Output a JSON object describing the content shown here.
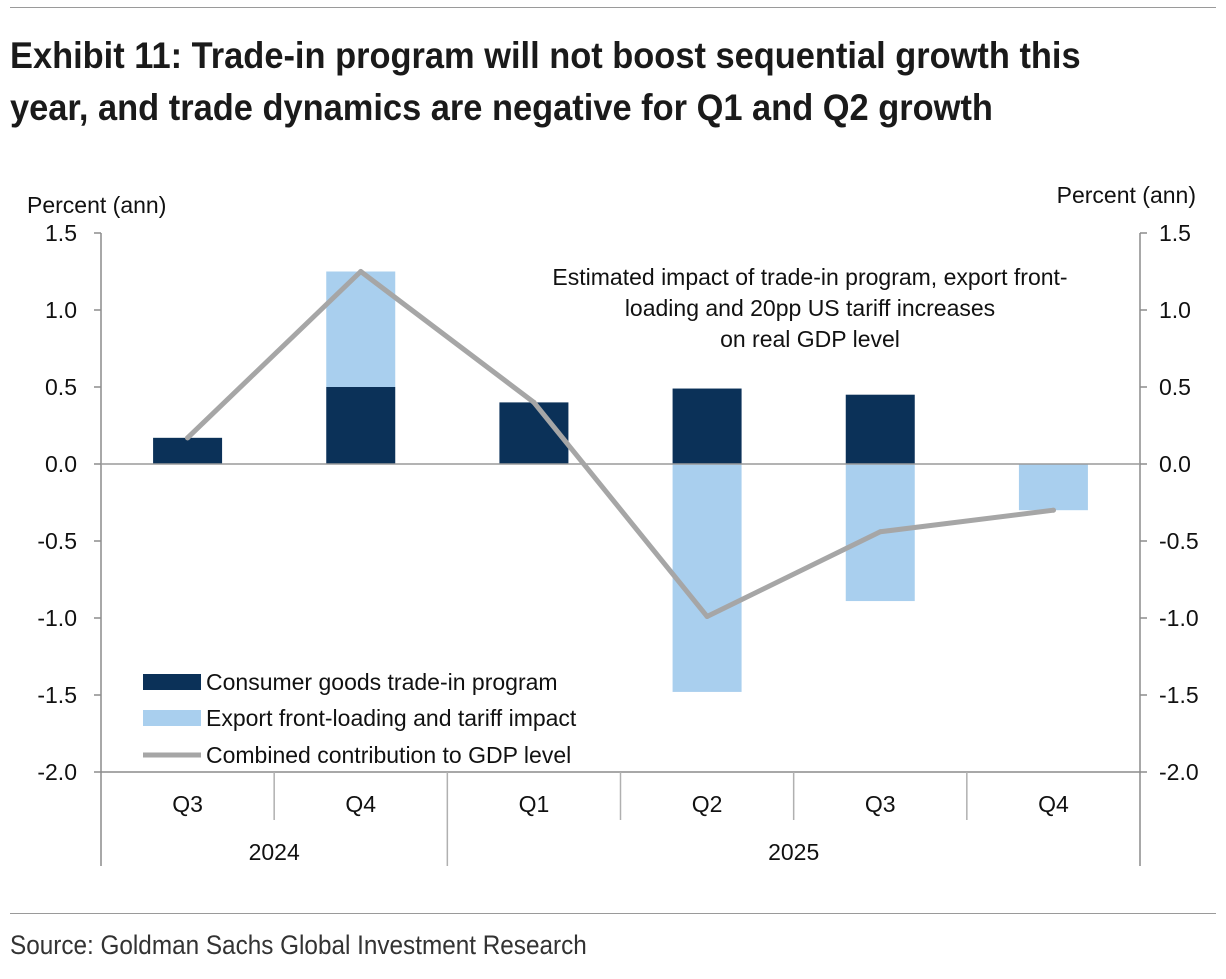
{
  "title_line1": "Exhibit 11: Trade-in program will not boost sequential growth this",
  "title_line2": "year, and trade dynamics are negative for Q1 and Q2 growth",
  "source": "Source: Goldman Sachs Global Investment Research",
  "chart_data": {
    "type": "bar",
    "stacked": true,
    "y_axis_left_label": "Percent (ann)",
    "y_axis_right_label": "Percent (ann)",
    "ylim": [
      -2.0,
      1.5
    ],
    "yticks": [
      "1.5",
      "1.0",
      "0.5",
      "0.0",
      "-0.5",
      "-1.0",
      "-1.5",
      "-2.0"
    ],
    "ytick_values": [
      1.5,
      1.0,
      0.5,
      0.0,
      -0.5,
      -1.0,
      -1.5,
      -2.0
    ],
    "categories": [
      "Q3",
      "Q4",
      "Q1",
      "Q2",
      "Q3",
      "Q4"
    ],
    "year_groups": [
      {
        "label": "2024",
        "count": 2
      },
      {
        "label": "2025",
        "count": 4
      }
    ],
    "annotation": [
      "Estimated impact of trade-in program, export front-",
      "loading and 20pp US tariff increases",
      "on real GDP level"
    ],
    "series": [
      {
        "name": "Consumer goods trade-in program",
        "kind": "bar",
        "color": "#0b3158",
        "values": [
          0.17,
          0.5,
          0.4,
          0.49,
          0.45,
          0.0
        ]
      },
      {
        "name": "Export front-loading and tariff impact",
        "kind": "bar",
        "color": "#a9cfee",
        "values": [
          0.0,
          0.75,
          0.0,
          -1.48,
          -0.89,
          -0.3
        ]
      },
      {
        "name": "Combined contribution to GDP level",
        "kind": "line",
        "color": "#a6a6a6",
        "values": [
          0.17,
          1.25,
          0.4,
          -0.99,
          -0.44,
          -0.3
        ]
      }
    ],
    "legend_position": "bottom-left",
    "grid": false
  }
}
